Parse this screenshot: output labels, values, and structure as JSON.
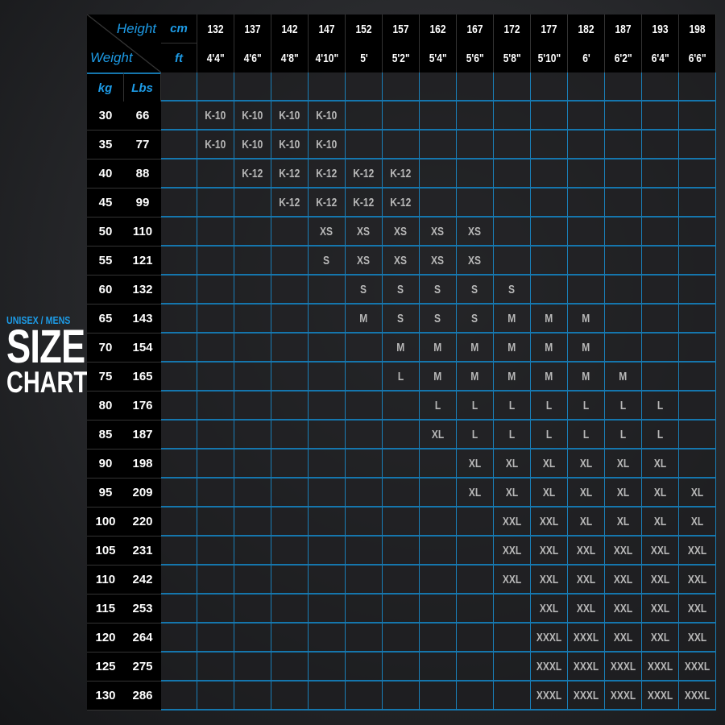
{
  "title": {
    "subtitle": "UNISEX / MENS",
    "line1": "SIZE",
    "line2": "CHART"
  },
  "header": {
    "height_label": "Height",
    "weight_label": "Weight",
    "cm_label": "cm",
    "ft_label": "ft",
    "kg_label": "kg",
    "lbs_label": "Lbs"
  },
  "colors": {
    "accent": "#1d9be6",
    "cell_text": "#b8b8b8",
    "header_bg": "#000000"
  },
  "heights_cm": [
    "132",
    "137",
    "142",
    "147",
    "152",
    "157",
    "162",
    "167",
    "172",
    "177",
    "182",
    "187",
    "193",
    "198"
  ],
  "heights_ft": [
    "4'4\"",
    "4'6\"",
    "4'8\"",
    "4'10\"",
    "5'",
    "5'2\"",
    "5'4\"",
    "5'6\"",
    "5'8\"",
    "5'10\"",
    "6'",
    "6'2\"",
    "6'4\"",
    "6'6\""
  ],
  "rows": [
    {
      "kg": "30",
      "lbs": "66",
      "sizes": [
        "K-10",
        "K-10",
        "K-10",
        "K-10",
        "",
        "",
        "",
        "",
        "",
        "",
        "",
        "",
        "",
        ""
      ]
    },
    {
      "kg": "35",
      "lbs": "77",
      "sizes": [
        "K-10",
        "K-10",
        "K-10",
        "K-10",
        "",
        "",
        "",
        "",
        "",
        "",
        "",
        "",
        "",
        ""
      ]
    },
    {
      "kg": "40",
      "lbs": "88",
      "sizes": [
        "",
        "K-12",
        "K-12",
        "K-12",
        "K-12",
        "K-12",
        "",
        "",
        "",
        "",
        "",
        "",
        "",
        ""
      ]
    },
    {
      "kg": "45",
      "lbs": "99",
      "sizes": [
        "",
        "",
        "K-12",
        "K-12",
        "K-12",
        "K-12",
        "",
        "",
        "",
        "",
        "",
        "",
        "",
        ""
      ]
    },
    {
      "kg": "50",
      "lbs": "110",
      "sizes": [
        "",
        "",
        "",
        "XS",
        "XS",
        "XS",
        "XS",
        "XS",
        "",
        "",
        "",
        "",
        "",
        ""
      ]
    },
    {
      "kg": "55",
      "lbs": "121",
      "sizes": [
        "",
        "",
        "",
        "S",
        "XS",
        "XS",
        "XS",
        "XS",
        "",
        "",
        "",
        "",
        "",
        ""
      ]
    },
    {
      "kg": "60",
      "lbs": "132",
      "sizes": [
        "",
        "",
        "",
        "",
        "S",
        "S",
        "S",
        "S",
        "S",
        "",
        "",
        "",
        "",
        ""
      ]
    },
    {
      "kg": "65",
      "lbs": "143",
      "sizes": [
        "",
        "",
        "",
        "",
        "M",
        "S",
        "S",
        "S",
        "M",
        "M",
        "M",
        "",
        "",
        ""
      ]
    },
    {
      "kg": "70",
      "lbs": "154",
      "sizes": [
        "",
        "",
        "",
        "",
        "",
        "M",
        "M",
        "M",
        "M",
        "M",
        "M",
        "",
        "",
        ""
      ]
    },
    {
      "kg": "75",
      "lbs": "165",
      "sizes": [
        "",
        "",
        "",
        "",
        "",
        "L",
        "M",
        "M",
        "M",
        "M",
        "M",
        "M",
        "",
        ""
      ]
    },
    {
      "kg": "80",
      "lbs": "176",
      "sizes": [
        "",
        "",
        "",
        "",
        "",
        "",
        "L",
        "L",
        "L",
        "L",
        "L",
        "L",
        "L",
        ""
      ]
    },
    {
      "kg": "85",
      "lbs": "187",
      "sizes": [
        "",
        "",
        "",
        "",
        "",
        "",
        "XL",
        "L",
        "L",
        "L",
        "L",
        "L",
        "L",
        ""
      ]
    },
    {
      "kg": "90",
      "lbs": "198",
      "sizes": [
        "",
        "",
        "",
        "",
        "",
        "",
        "",
        "XL",
        "XL",
        "XL",
        "XL",
        "XL",
        "XL",
        ""
      ]
    },
    {
      "kg": "95",
      "lbs": "209",
      "sizes": [
        "",
        "",
        "",
        "",
        "",
        "",
        "",
        "XL",
        "XL",
        "XL",
        "XL",
        "XL",
        "XL",
        "XL"
      ]
    },
    {
      "kg": "100",
      "lbs": "220",
      "sizes": [
        "",
        "",
        "",
        "",
        "",
        "",
        "",
        "",
        "XXL",
        "XXL",
        "XL",
        "XL",
        "XL",
        "XL"
      ]
    },
    {
      "kg": "105",
      "lbs": "231",
      "sizes": [
        "",
        "",
        "",
        "",
        "",
        "",
        "",
        "",
        "XXL",
        "XXL",
        "XXL",
        "XXL",
        "XXL",
        "XXL"
      ]
    },
    {
      "kg": "110",
      "lbs": "242",
      "sizes": [
        "",
        "",
        "",
        "",
        "",
        "",
        "",
        "",
        "XXL",
        "XXL",
        "XXL",
        "XXL",
        "XXL",
        "XXL"
      ]
    },
    {
      "kg": "115",
      "lbs": "253",
      "sizes": [
        "",
        "",
        "",
        "",
        "",
        "",
        "",
        "",
        "",
        "XXL",
        "XXL",
        "XXL",
        "XXL",
        "XXL"
      ]
    },
    {
      "kg": "120",
      "lbs": "264",
      "sizes": [
        "",
        "",
        "",
        "",
        "",
        "",
        "",
        "",
        "",
        "XXXL",
        "XXXL",
        "XXL",
        "XXL",
        "XXL"
      ]
    },
    {
      "kg": "125",
      "lbs": "275",
      "sizes": [
        "",
        "",
        "",
        "",
        "",
        "",
        "",
        "",
        "",
        "XXXL",
        "XXXL",
        "XXXL",
        "XXXL",
        "XXXL"
      ]
    },
    {
      "kg": "130",
      "lbs": "286",
      "sizes": [
        "",
        "",
        "",
        "",
        "",
        "",
        "",
        "",
        "",
        "XXXL",
        "XXXL",
        "XXXL",
        "XXXL",
        "XXXL"
      ]
    }
  ]
}
